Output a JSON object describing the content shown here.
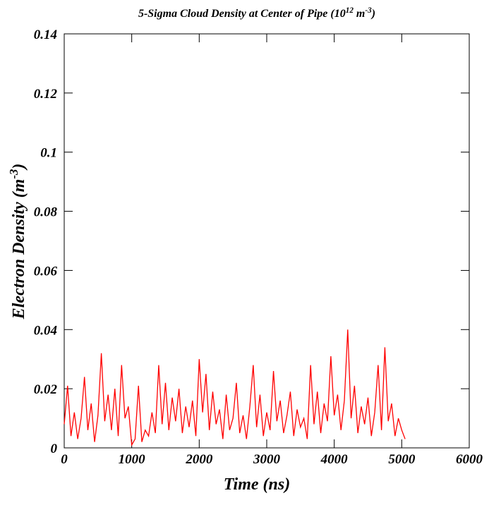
{
  "chart_data": {
    "type": "line",
    "title": [
      "5-Sigma Cloud Density at Center of Pipe (10",
      "12",
      " m",
      "-3",
      ")"
    ],
    "xlabel": "Time (ns)",
    "ylabel": [
      "Electron Density (m",
      "-3",
      ")"
    ],
    "color": "#ff0000",
    "xlim": [
      0,
      6000
    ],
    "xticks": [
      0,
      1000,
      2000,
      3000,
      4000,
      5000,
      6000
    ],
    "ylim": [
      0,
      0.14
    ],
    "yticks": [
      0,
      0.02,
      0.04,
      0.06,
      0.08,
      0.1,
      0.12,
      0.14
    ],
    "x": [
      0,
      50,
      100,
      150,
      200,
      250,
      300,
      350,
      400,
      450,
      500,
      550,
      600,
      650,
      700,
      750,
      800,
      850,
      900,
      950,
      1000,
      1050,
      1100,
      1150,
      1200,
      1250,
      1300,
      1350,
      1400,
      1450,
      1500,
      1550,
      1600,
      1650,
      1700,
      1750,
      1800,
      1850,
      1900,
      1950,
      2000,
      2050,
      2100,
      2150,
      2200,
      2250,
      2300,
      2350,
      2400,
      2450,
      2500,
      2550,
      2600,
      2650,
      2700,
      2750,
      2800,
      2850,
      2900,
      2950,
      3000,
      3050,
      3100,
      3150,
      3200,
      3250,
      3300,
      3350,
      3400,
      3450,
      3500,
      3550,
      3600,
      3650,
      3700,
      3750,
      3800,
      3850,
      3900,
      3950,
      4000,
      4050,
      4100,
      4150,
      4200,
      4250,
      4300,
      4350,
      4400,
      4450,
      4500,
      4550,
      4600,
      4650,
      4700,
      4750,
      4800,
      4850,
      4900,
      4950,
      5000,
      5050
    ],
    "values": [
      0.008,
      0.021,
      0.004,
      0.012,
      0.003,
      0.01,
      0.024,
      0.006,
      0.015,
      0.002,
      0.011,
      0.032,
      0.009,
      0.018,
      0.006,
      0.02,
      0.004,
      0.028,
      0.01,
      0.014,
      0.001,
      0.003,
      0.021,
      0.002,
      0.006,
      0.004,
      0.012,
      0.005,
      0.028,
      0.008,
      0.022,
      0.006,
      0.017,
      0.009,
      0.02,
      0.005,
      0.014,
      0.007,
      0.016,
      0.004,
      0.03,
      0.012,
      0.025,
      0.006,
      0.019,
      0.008,
      0.013,
      0.003,
      0.018,
      0.006,
      0.01,
      0.022,
      0.005,
      0.011,
      0.003,
      0.014,
      0.028,
      0.007,
      0.018,
      0.004,
      0.012,
      0.006,
      0.026,
      0.009,
      0.016,
      0.005,
      0.011,
      0.019,
      0.004,
      0.013,
      0.007,
      0.01,
      0.003,
      0.028,
      0.008,
      0.019,
      0.005,
      0.015,
      0.009,
      0.031,
      0.011,
      0.018,
      0.006,
      0.016,
      0.04,
      0.01,
      0.021,
      0.005,
      0.014,
      0.008,
      0.017,
      0.004,
      0.012,
      0.028,
      0.006,
      0.034,
      0.009,
      0.015,
      0.004,
      0.01,
      0.006,
      0.003
    ]
  }
}
